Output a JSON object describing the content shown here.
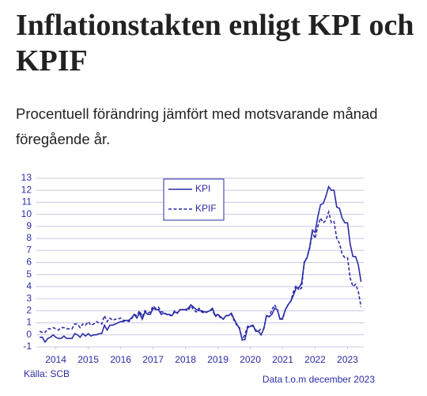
{
  "chart_data": {
    "type": "line",
    "title": "Inflationstakten enligt KPI och KPIF",
    "subtitle": "Procentuell förändring jämfört med motsvarande månad föregående år.",
    "source": "Källa: SCB",
    "note": "Data t.o.m december 2023",
    "x": [
      2014,
      2014.083,
      2014.167,
      2014.25,
      2014.333,
      2014.417,
      2014.5,
      2014.583,
      2014.667,
      2014.75,
      2014.833,
      2014.917,
      2015,
      2015.083,
      2015.167,
      2015.25,
      2015.333,
      2015.417,
      2015.5,
      2015.583,
      2015.667,
      2015.75,
      2015.833,
      2015.917,
      2016,
      2016.083,
      2016.167,
      2016.25,
      2016.333,
      2016.417,
      2016.5,
      2016.583,
      2016.667,
      2016.75,
      2016.833,
      2016.917,
      2017,
      2017.083,
      2017.167,
      2017.25,
      2017.333,
      2017.417,
      2017.5,
      2017.583,
      2017.667,
      2017.75,
      2017.833,
      2017.917,
      2018,
      2018.083,
      2018.167,
      2018.25,
      2018.333,
      2018.417,
      2018.5,
      2018.583,
      2018.667,
      2018.75,
      2018.833,
      2018.917,
      2019,
      2019.083,
      2019.167,
      2019.25,
      2019.333,
      2019.417,
      2019.5,
      2019.583,
      2019.667,
      2019.75,
      2019.833,
      2019.917,
      2020,
      2020.083,
      2020.167,
      2020.25,
      2020.333,
      2020.417,
      2020.5,
      2020.583,
      2020.667,
      2020.75,
      2020.833,
      2020.917,
      2021,
      2021.083,
      2021.167,
      2021.25,
      2021.333,
      2021.417,
      2021.5,
      2021.583,
      2021.667,
      2021.75,
      2021.833,
      2021.917,
      2022,
      2022.083,
      2022.167,
      2022.25,
      2022.333,
      2022.417,
      2022.5,
      2022.583,
      2022.667,
      2022.75,
      2022.833,
      2022.917,
      2023,
      2023.083,
      2023.167,
      2023.25,
      2023.333,
      2023.417,
      2023.5,
      2023.583,
      2023.667,
      2023.75,
      2023.833,
      2023.917
    ],
    "series": [
      {
        "name": "KPI",
        "color": "#2b2ba6",
        "dash": false,
        "values": [
          -0.2,
          -0.2,
          -0.6,
          -0.3,
          -0.2,
          0.0,
          -0.2,
          -0.3,
          -0.3,
          -0.1,
          -0.3,
          -0.3,
          -0.3,
          0.1,
          0.0,
          -0.2,
          0.1,
          -0.1,
          0.1,
          -0.1,
          0.0,
          0.0,
          0.1,
          0.1,
          0.8,
          0.4,
          0.8,
          0.8,
          0.9,
          1.0,
          1.1,
          1.1,
          1.2,
          1.2,
          1.4,
          1.7,
          1.4,
          1.8,
          1.3,
          1.9,
          1.7,
          1.7,
          2.2,
          2.1,
          2.1,
          1.7,
          1.8,
          1.7,
          1.7,
          1.6,
          1.9,
          1.8,
          2.1,
          2.1,
          2.1,
          2.2,
          2.5,
          2.3,
          2.1,
          2.0,
          2.0,
          1.9,
          1.9,
          2.0,
          2.2,
          1.6,
          1.7,
          1.5,
          1.3,
          1.6,
          1.6,
          1.8,
          1.3,
          0.9,
          0.5,
          -0.4,
          -0.4,
          0.6,
          0.7,
          0.8,
          0.3,
          0.3,
          0.0,
          0.5,
          1.6,
          1.5,
          1.7,
          2.2,
          2.1,
          1.3,
          1.4,
          2.1,
          2.5,
          2.8,
          3.3,
          3.9,
          3.9,
          4.3,
          6.0,
          6.4,
          7.3,
          8.7,
          8.5,
          9.8,
          10.8,
          10.9,
          11.5,
          12.3,
          12.0,
          12.0,
          10.6,
          10.5,
          9.7,
          9.3,
          9.3,
          7.5,
          6.5,
          6.5,
          5.8,
          4.4
        ]
      },
      {
        "name": "KPIF",
        "color": "#2b2ba6",
        "dash": true,
        "values": [
          0.3,
          0.2,
          0.2,
          0.5,
          0.5,
          0.6,
          0.5,
          0.4,
          0.6,
          0.6,
          0.5,
          0.5,
          0.5,
          0.9,
          0.9,
          0.6,
          0.9,
          0.8,
          1.1,
          0.8,
          0.9,
          1.1,
          1.0,
          0.9,
          1.6,
          1.1,
          1.4,
          1.2,
          1.3,
          1.3,
          1.4,
          1.2,
          1.2,
          1.1,
          1.3,
          1.7,
          1.6,
          2.0,
          1.5,
          2.0,
          1.8,
          1.9,
          2.4,
          2.2,
          2.3,
          1.9,
          1.9,
          1.7,
          1.6,
          1.6,
          2.0,
          1.8,
          2.1,
          2.1,
          2.1,
          2.0,
          2.4,
          2.1,
          1.9,
          2.2,
          1.9,
          1.8,
          1.9,
          2.0,
          2.1,
          1.5,
          1.7,
          1.4,
          1.3,
          1.6,
          1.6,
          1.7,
          1.2,
          0.8,
          0.6,
          -0.4,
          0.0,
          0.7,
          0.8,
          0.7,
          0.4,
          0.3,
          0.5,
          0.5,
          1.6,
          1.5,
          2.1,
          2.5,
          2.1,
          1.3,
          1.3,
          2.1,
          2.5,
          2.8,
          3.6,
          4.1,
          3.7,
          3.9,
          6.1,
          6.4,
          7.2,
          8.5,
          8.0,
          9.0,
          9.7,
          9.3,
          9.5,
          10.2,
          9.3,
          9.4,
          8.0,
          7.6,
          6.7,
          6.4,
          6.4,
          4.7,
          4.0,
          4.2,
          3.6,
          2.3
        ]
      }
    ],
    "xlim": [
      2013.9,
      2024.0
    ],
    "xticks": [
      {
        "value": 2014.5,
        "label": "2014"
      },
      {
        "value": 2015.5,
        "label": "2015"
      },
      {
        "value": 2016.5,
        "label": "2016"
      },
      {
        "value": 2017.5,
        "label": "2017"
      },
      {
        "value": 2018.5,
        "label": "2018"
      },
      {
        "value": 2019.5,
        "label": "2019"
      },
      {
        "value": 2020.5,
        "label": "2020"
      },
      {
        "value": 2021.5,
        "label": "2021"
      },
      {
        "value": 2022.5,
        "label": "2022"
      },
      {
        "value": 2023.5,
        "label": "2023"
      }
    ],
    "ylim": [
      -1,
      13
    ],
    "yticks": [
      -1,
      0,
      1,
      2,
      3,
      4,
      5,
      6,
      7,
      8,
      9,
      10,
      11,
      12,
      13
    ],
    "grid": true
  }
}
